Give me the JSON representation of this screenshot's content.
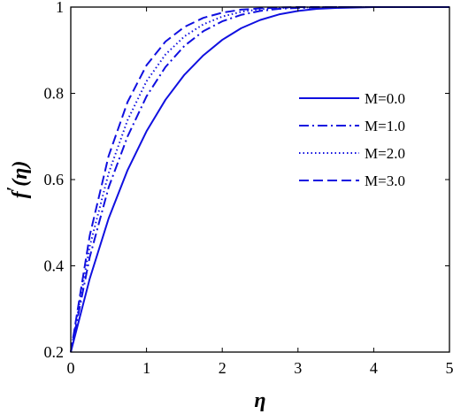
{
  "chart_data": {
    "type": "line",
    "xlabel": "η",
    "ylabel_main": "f",
    "ylabel_prime": "′",
    "ylabel_arg": "(η)",
    "xlim": [
      0,
      5
    ],
    "ylim": [
      0.2,
      1
    ],
    "x_ticks": [
      0,
      1,
      2,
      3,
      4,
      5
    ],
    "x_tick_labels": [
      "0",
      "1",
      "2",
      "3",
      "4",
      "5"
    ],
    "y_ticks": [
      0.2,
      0.4,
      0.6,
      0.8,
      1.0
    ],
    "y_tick_labels": [
      "0.2",
      "0.4",
      "0.6",
      "0.8",
      "1"
    ],
    "grid": false,
    "legend_position": "right",
    "line_color": "#1010e0",
    "series": [
      {
        "name": "M=0.0",
        "style": "solid",
        "x": [
          0,
          0.25,
          0.5,
          0.75,
          1.0,
          1.25,
          1.5,
          1.75,
          2.0,
          2.25,
          2.5,
          2.75,
          3.0,
          3.25,
          3.5,
          4.0,
          4.5,
          5.0
        ],
        "y": [
          0.2,
          0.37,
          0.51,
          0.622,
          0.712,
          0.785,
          0.843,
          0.888,
          0.924,
          0.951,
          0.97,
          0.983,
          0.991,
          0.996,
          0.998,
          1.0,
          1.0,
          1.0
        ]
      },
      {
        "name": "M=1.0",
        "style": "dashdot",
        "x": [
          0,
          0.25,
          0.5,
          0.75,
          1.0,
          1.25,
          1.5,
          1.75,
          2.0,
          2.25,
          2.5,
          2.75,
          3.0,
          3.5,
          4.0,
          5.0
        ],
        "y": [
          0.2,
          0.42,
          0.582,
          0.7,
          0.793,
          0.861,
          0.91,
          0.944,
          0.967,
          0.982,
          0.991,
          0.996,
          0.998,
          1.0,
          1.0,
          1.0
        ]
      },
      {
        "name": "M=2.0",
        "style": "dotted",
        "x": [
          0,
          0.25,
          0.5,
          0.75,
          1.0,
          1.25,
          1.5,
          1.75,
          2.0,
          2.25,
          2.5,
          2.75,
          3.0,
          3.5,
          4.0,
          5.0
        ],
        "y": [
          0.2,
          0.445,
          0.615,
          0.738,
          0.828,
          0.89,
          0.932,
          0.96,
          0.978,
          0.989,
          0.995,
          0.998,
          0.999,
          1.0,
          1.0,
          1.0
        ]
      },
      {
        "name": "M=3.0",
        "style": "dashed",
        "x": [
          0,
          0.25,
          0.5,
          0.75,
          1.0,
          1.25,
          1.5,
          1.75,
          2.0,
          2.25,
          2.5,
          2.75,
          3.0,
          3.5,
          4.0,
          5.0
        ],
        "y": [
          0.2,
          0.47,
          0.655,
          0.78,
          0.865,
          0.92,
          0.954,
          0.975,
          0.987,
          0.994,
          0.997,
          0.999,
          1.0,
          1.0,
          1.0,
          1.0
        ]
      }
    ]
  }
}
